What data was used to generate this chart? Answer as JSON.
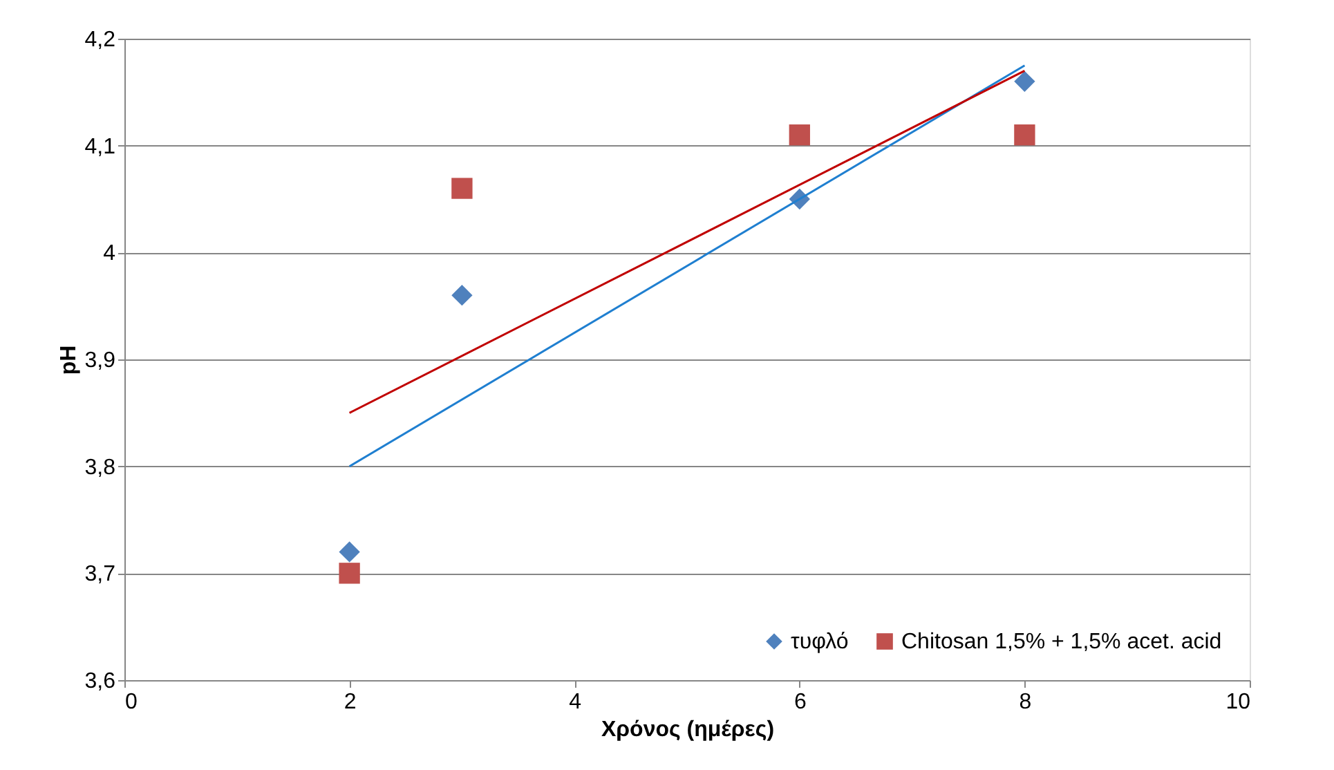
{
  "chart_data": {
    "type": "scatter",
    "xlabel": "Χρόνος (ημέρες)",
    "ylabel": "pH",
    "xlim": [
      0,
      10
    ],
    "xticks": [
      0,
      2,
      4,
      6,
      8,
      10
    ],
    "ylim": [
      3.6,
      4.2
    ],
    "yticks": [
      {
        "value": 3.6,
        "label": "3,6"
      },
      {
        "value": 3.7,
        "label": "3,7"
      },
      {
        "value": 3.8,
        "label": "3,8"
      },
      {
        "value": 3.9,
        "label": "3,9"
      },
      {
        "value": 4.0,
        "label": "4"
      },
      {
        "value": 4.1,
        "label": "4,1"
      },
      {
        "value": 4.2,
        "label": "4,2"
      }
    ],
    "grid": "y",
    "legend": "bottom right",
    "series": [
      {
        "name": "τυφλό",
        "color": "#4f81bd",
        "marker": "diamond",
        "x": [
          2,
          3,
          6,
          8
        ],
        "values": [
          3.72,
          3.96,
          4.05,
          4.16
        ]
      },
      {
        "name": "Chitosan 1,5% + 1,5% acet. acid",
        "color": "#c0504d",
        "marker": "square",
        "x": [
          2,
          3,
          6,
          8
        ],
        "values": [
          3.7,
          4.06,
          4.11,
          4.11
        ]
      },
      {
        "type": "line",
        "color": "#1f7fd0",
        "line_style": "solid",
        "x": [
          2,
          8
        ],
        "values": [
          3.8,
          4.175
        ]
      },
      {
        "type": "line",
        "color": "#c00000",
        "line_style": "solid",
        "x": [
          2,
          8
        ],
        "values": [
          3.85,
          4.17
        ]
      }
    ]
  }
}
